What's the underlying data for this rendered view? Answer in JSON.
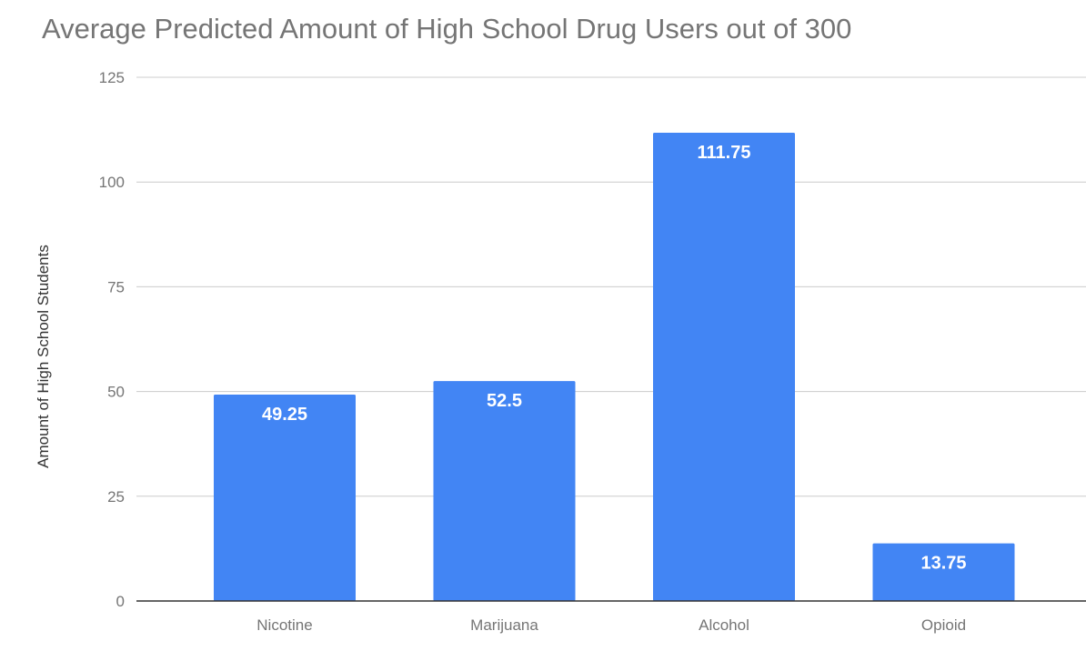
{
  "chart_data": {
    "type": "bar",
    "title": "Average Predicted Amount of High School Drug Users out of 300",
    "xlabel": "",
    "ylabel": "Amount of High School Students",
    "categories": [
      "Nicotine",
      "Marijuana",
      "Alcohol",
      "Opioid"
    ],
    "values": [
      49.25,
      52.5,
      111.75,
      13.75
    ],
    "data_labels": [
      "49.25",
      "52.5",
      "111.75",
      "13.75"
    ],
    "ylim": [
      0,
      125
    ],
    "yticks": [
      0,
      25,
      50,
      75,
      100,
      125
    ],
    "grid": true,
    "legend": "none",
    "bar_color": "#4285f4"
  }
}
